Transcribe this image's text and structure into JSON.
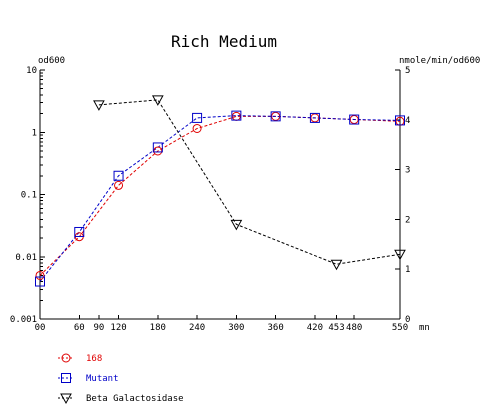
{
  "chart_data": {
    "type": "line",
    "title": "Rich Medium",
    "left_axis_unit": "od600",
    "right_axis_unit": "nmole/min/od600",
    "x_unit": "mn",
    "x_range": [
      0,
      550
    ],
    "x_ticks": [
      0,
      60,
      90,
      120,
      180,
      240,
      300,
      360,
      420,
      453,
      480,
      550
    ],
    "x_tick_labels": [
      "00",
      "60",
      "90",
      "120",
      "180",
      "240",
      "300",
      "360",
      "420",
      "453",
      "480",
      "550"
    ],
    "left_scale": "log",
    "left_range": [
      0.001,
      10
    ],
    "left_ticks": [
      10,
      1,
      0.1,
      0.01,
      0.001
    ],
    "left_tick_labels": [
      "10",
      "1",
      "0.1",
      "0.01",
      "0.001"
    ],
    "right_range": [
      0,
      5
    ],
    "right_ticks": [
      5,
      4,
      3,
      2,
      1,
      0
    ],
    "right_tick_labels": [
      "5",
      "4",
      "3",
      "2",
      "1",
      "0"
    ],
    "grid": false,
    "legend_position": "bottom-left",
    "series": [
      {
        "name": "168",
        "axis": "left",
        "marker": "circle",
        "color": "#e00000",
        "x": [
          0,
          60,
          120,
          180,
          240,
          300,
          360,
          420,
          480,
          550
        ],
        "values": [
          0.005,
          0.021,
          0.14,
          0.5,
          1.15,
          1.8,
          1.8,
          1.7,
          1.6,
          1.5
        ]
      },
      {
        "name": "Mutant",
        "axis": "left",
        "marker": "square",
        "color": "#0000c8",
        "x": [
          0,
          60,
          120,
          180,
          240,
          300,
          360,
          420,
          480,
          550
        ],
        "values": [
          0.004,
          0.025,
          0.2,
          0.57,
          1.7,
          1.85,
          1.8,
          1.7,
          1.6,
          1.55
        ]
      },
      {
        "name": "Beta Galactosidase",
        "axis": "right",
        "marker": "triangle-down",
        "color": "#000000",
        "x": [
          90,
          180,
          300,
          453,
          550
        ],
        "values": [
          4.3,
          4.4,
          1.9,
          1.1,
          1.3
        ]
      }
    ]
  }
}
